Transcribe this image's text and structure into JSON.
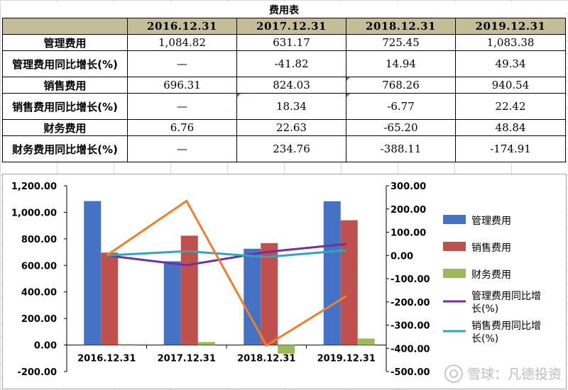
{
  "table": {
    "title": "费用表",
    "headers": [
      "2016.12.31",
      "2017.12.31",
      "2018.12.31",
      "2019.12.31"
    ],
    "rows": [
      {
        "label": "管理费用",
        "values": [
          "1,084.82",
          "631.17",
          "725.45",
          "1,083.38"
        ]
      },
      {
        "label": "管理费用同比增长(%)",
        "values": [
          "—",
          "-41.82",
          "14.94",
          "49.34"
        ]
      },
      {
        "label": "销售费用",
        "values": [
          "696.31",
          "824.03",
          "768.26",
          "940.54"
        ]
      },
      {
        "label": "销售费用同比增长(%)",
        "values": [
          "—",
          "18.34",
          "-6.77",
          "22.42"
        ]
      },
      {
        "label": "财务费用",
        "values": [
          "6.76",
          "22.63",
          "-65.20",
          "48.84"
        ]
      },
      {
        "label": "财务费用同比增长(%)",
        "values": [
          "—",
          "234.76",
          "-388.11",
          "-174.91"
        ]
      }
    ]
  },
  "chart_data": {
    "type": "bar",
    "categories": [
      "2016.12.31",
      "2017.12.31",
      "2018.12.31",
      "2019.12.31"
    ],
    "series": [
      {
        "name": "管理费用",
        "kind": "bar",
        "axis": "left",
        "color": "#4472c4",
        "values": [
          1084.82,
          631.17,
          725.45,
          1083.38
        ]
      },
      {
        "name": "销售费用",
        "kind": "bar",
        "axis": "left",
        "color": "#c0504d",
        "values": [
          696.31,
          824.03,
          768.26,
          940.54
        ]
      },
      {
        "name": "财务费用",
        "kind": "bar",
        "axis": "left",
        "color": "#9bbb59",
        "values": [
          6.76,
          22.63,
          -65.2,
          48.84
        ]
      },
      {
        "name": "管理费用同比增长(%)",
        "kind": "line",
        "axis": "right",
        "color": "#7030a0",
        "values": [
          0,
          -41.82,
          14.94,
          49.34
        ]
      },
      {
        "name": "销售费用同比增长(%)",
        "kind": "line",
        "axis": "right",
        "color": "#31a5b9",
        "values": [
          0,
          18.34,
          -6.77,
          22.42
        ]
      },
      {
        "name": "财务费用同比增长(%)",
        "kind": "line",
        "axis": "right",
        "color": "#f07f2a",
        "values": [
          0,
          234.76,
          -388.11,
          -174.91
        ]
      }
    ],
    "y_left": {
      "min": -200,
      "max": 1200,
      "step": 200,
      "tick_labels": [
        "1,200.00",
        "1,000.00",
        "800.00",
        "600.00",
        "400.00",
        "200.00",
        "0.00",
        "-200.00"
      ]
    },
    "y_right": {
      "min": -500,
      "max": 300,
      "step": 100,
      "tick_labels": [
        "300.00",
        "200.00",
        "100.00",
        "0.00",
        "-100.00",
        "-200.00",
        "-300.00",
        "-400.00",
        "-500.00"
      ]
    },
    "legend_entries": [
      "管理费用",
      "销售费用",
      "财务费用",
      "管理费用同比增长(%)",
      "销售费用同比增长(%)"
    ],
    "legend_lines": [
      [
        "管理费用同比增",
        "长(%)"
      ],
      [
        "销售费用同比增",
        "长(%)"
      ]
    ]
  },
  "watermark": {
    "text": "雪球：凡德投资",
    "icon": "snowball-logo-icon"
  }
}
